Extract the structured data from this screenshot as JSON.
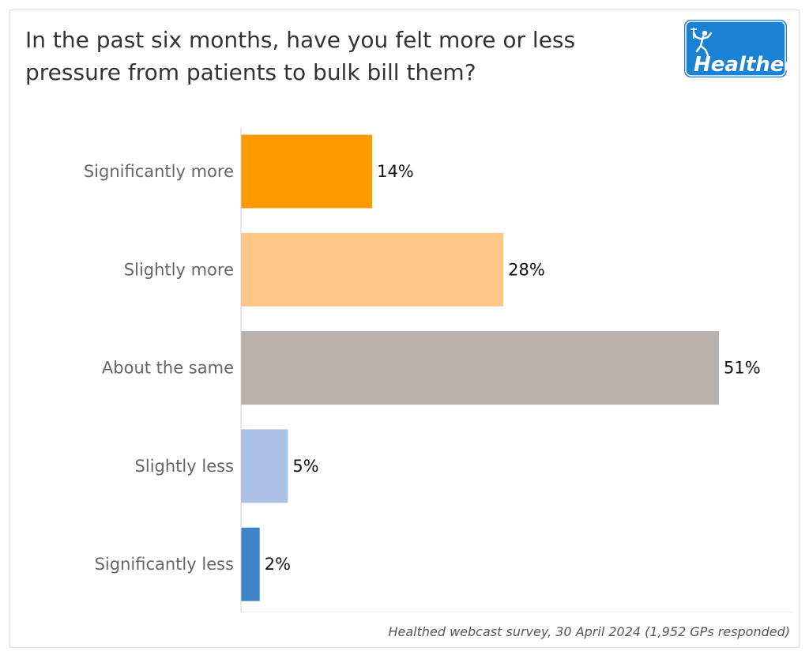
{
  "header": {
    "title": "In the past six months, have you felt more or less pressure from patients to bulk bill them?",
    "logo_text": "Healthed"
  },
  "footer": {
    "source": "Healthed webcast survey, 30 April 2024 (1,952 GPs responded)"
  },
  "chart_data": {
    "type": "bar",
    "orientation": "horizontal",
    "title": "In the past six months, have you felt more or less pressure from patients to bulk bill them?",
    "categories": [
      "Significantly more",
      "Slightly more",
      "About the same",
      "Slightly less",
      "Significantly less"
    ],
    "values": [
      14,
      28,
      51,
      5,
      2
    ],
    "value_labels": [
      "14%",
      "28%",
      "51%",
      "5%",
      "2%"
    ],
    "colors": [
      "#ff9900",
      "#ffc685",
      "#b8b0aa",
      "#aac0e5",
      "#3f84c6"
    ],
    "unit": "%",
    "xlim": [
      0,
      51
    ],
    "grid": false,
    "legend": "none"
  },
  "colors": {
    "logo_bg": "#1a82d4",
    "logo_text": "#ffffff"
  }
}
